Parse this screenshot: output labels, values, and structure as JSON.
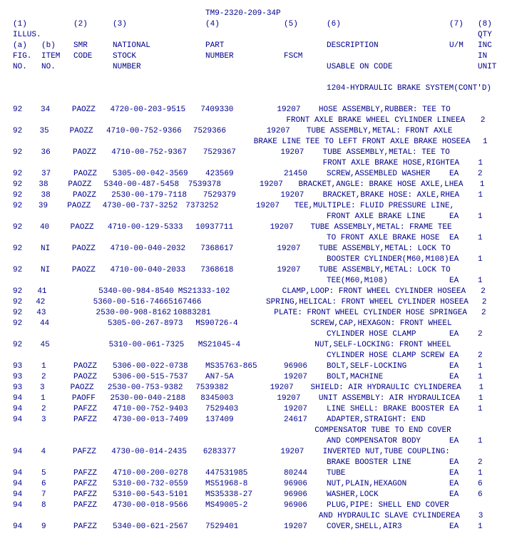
{
  "doc_title": "TM9-2320-209-34P",
  "header": {
    "r1": {
      "c1": "(1)",
      "c2": "",
      "c3": "(2)",
      "c4": "(3)",
      "c5": "(4)",
      "c6": "(5)",
      "c7": "(6)",
      "c8": "(7)",
      "c9": "(8)"
    },
    "r2": {
      "c1": "ILLUS.",
      "c2": "",
      "c3": "",
      "c4": "",
      "c5": "",
      "c6": "",
      "c7": "",
      "c8": "",
      "c9": "QTY"
    },
    "r3": {
      "c1": "(a)",
      "c2": "(b)",
      "c3": "SMR",
      "c4": "NATIONAL",
      "c5": "PART",
      "c6": "",
      "c7": "DESCRIPTION",
      "c8": "U/M",
      "c9": "INC"
    },
    "r4": {
      "c1": "FIG.",
      "c2": "ITEM",
      "c3": "CODE",
      "c4": "STOCK",
      "c5": "NUMBER",
      "c6": "FSCM",
      "c7": "",
      "c8": "",
      "c9": "IN"
    },
    "r5": {
      "c1": "NO.",
      "c2": "NO.",
      "c3": "",
      "c4": "NUMBER",
      "c5": "",
      "c6": "",
      "c7": "USABLE ON CODE",
      "c8": "",
      "c9": "UNIT"
    }
  },
  "section_title": "1204-HYDRAULIC BRAKE SYSTEM(CONT'D)",
  "rows": [
    {
      "c1": "92",
      "c2": "34",
      "c3": "PAOZZ",
      "c4": "4720-00-203-9515",
      "c5": "7409330",
      "c6": "19207",
      "c7": "HOSE ASSEMBLY,RUBBER: TEE TO",
      "c8": "",
      "c9": ""
    },
    {
      "c1": "",
      "c2": "",
      "c3": "",
      "c4": "",
      "c5": "",
      "c6": "",
      "c7": "FRONT AXLE BRAKE WHEEL CYLINDER LINE",
      "c8": "EA",
      "c9": "2"
    },
    {
      "c1": "92",
      "c2": "35",
      "c3": "PAOZZ",
      "c4": "4710-00-752-9366",
      "c5": "7529366",
      "c6": "19207",
      "c7": "TUBE ASSEMBLY,METAL: FRONT AXLE",
      "c8": "",
      "c9": ""
    },
    {
      "c1": "",
      "c2": "",
      "c3": "",
      "c4": "",
      "c5": "",
      "c6": "",
      "c7": "BRAKE LINE TEE TO LEFT FRONT AXLE BRAKE HOSE",
      "c8": "EA",
      "c9": "1"
    },
    {
      "c1": "92",
      "c2": "36",
      "c3": "PAOZZ",
      "c4": "4710-00-752-9367",
      "c5": "7529367",
      "c6": "19207",
      "c7": "TUBE ASSEMBLY,METAL: TEE TO",
      "c8": "",
      "c9": ""
    },
    {
      "c1": "",
      "c2": "",
      "c3": "",
      "c4": "",
      "c5": "",
      "c6": "",
      "c7": "FRONT AXLE BRAKE HOSE,RIGHT",
      "c8": "EA",
      "c9": "1"
    },
    {
      "c1": "92",
      "c2": "37",
      "c3": "PAOZZ",
      "c4": "5305-00-042-3569",
      "c5": "423569",
      "c6": "21450",
      "c7": "SCREW,ASSEMBLED WASHER",
      "c8": "EA",
      "c9": "2"
    },
    {
      "c1": "92",
      "c2": "38",
      "c3": "PAOZZ",
      "c4": "5340-00-487-5458",
      "c5": "7539378",
      "c6": "19207",
      "c7": "BRACKET,ANGLE: BRAKE HOSE AXLE,LH",
      "c8": "EA",
      "c9": "1"
    },
    {
      "c1": "92",
      "c2": "38",
      "c3": "PAOZZ",
      "c4": "2530-00-179-7118",
      "c5": "7529379",
      "c6": "19207",
      "c7": "BRACKET,BRAKE HOSE: AXLE,RH",
      "c8": "EA",
      "c9": "1"
    },
    {
      "c1": "92",
      "c2": "39",
      "c3": "PAOZZ",
      "c4": "4730-00-737-3252",
      "c5": "7373252",
      "c6": "19207",
      "c7": "TEE,MULTIPLE: FLUID PRESSURE LINE,",
      "c8": "",
      "c9": ""
    },
    {
      "c1": "",
      "c2": "",
      "c3": "",
      "c4": "",
      "c5": "",
      "c6": "",
      "c7": "FRONT AXLE BRAKE LINE",
      "c8": "EA",
      "c9": "1"
    },
    {
      "c1": "92",
      "c2": "40",
      "c3": "PAOZZ",
      "c4": "4710-00-129-5333",
      "c5": "10937711",
      "c6": "19207",
      "c7": "TUBE ASSEMBLY,METAL: FRAME TEE",
      "c8": "",
      "c9": ""
    },
    {
      "c1": "",
      "c2": "",
      "c3": "",
      "c4": "",
      "c5": "",
      "c6": "",
      "c7": "TO FRONT AXLE BRAKE HOSE",
      "c8": "EA",
      "c9": "1"
    },
    {
      "c1": "92",
      "c2": "NI",
      "c3": "PAOZZ",
      "c4": "4710-00-040-2032",
      "c5": "7368617",
      "c6": "19207",
      "c7": "TUBE ASSEMBLY,METAL: LOCK TO",
      "c8": "",
      "c9": ""
    },
    {
      "c1": "",
      "c2": "",
      "c3": "",
      "c4": "",
      "c5": "",
      "c6": "",
      "c7": "BOOSTER CYLINDER(M60,M108)",
      "c8": "EA",
      "c9": "1"
    },
    {
      "c1": "92",
      "c2": "NI",
      "c3": "PAOZZ",
      "c4": "4710-00-040-2033",
      "c5": "7368618",
      "c6": "19207",
      "c7": "TUBE ASSEMBLY,METAL: LOCK TO",
      "c8": "",
      "c9": ""
    },
    {
      "c1": "",
      "c2": "",
      "c3": "",
      "c4": "",
      "c5": "",
      "c6": "",
      "c7": "TEE(M60,M108)",
      "c8": "EA",
      "c9": "1"
    },
    {
      "c1": "92",
      "c2": "41",
      "c3": "",
      "c4": "5340-00-984-8540",
      "c5": "MS21333-102",
      "c6": "",
      "c7": "CLAMP,LOOP: FRONT WHEEL CYLINDER HOSE",
      "c8": "EA",
      "c9": "2"
    },
    {
      "c1": "92",
      "c2": "42",
      "c3": "",
      "c4": "5360-00-516-7466",
      "c5": "5167466",
      "c6": "",
      "c7": "SPRING,HELICAL: FRONT WHEEL CYLINDER HOSE",
      "c8": "EA",
      "c9": "2"
    },
    {
      "c1": "92",
      "c2": "43",
      "c3": "",
      "c4": "2530-00-908-8162",
      "c5": "10883281",
      "c6": "",
      "c7": "PLATE: FRONT WHEEL CYLINDER HOSE SPRING",
      "c8": "EA",
      "c9": "2"
    },
    {
      "c1": "92",
      "c2": "44",
      "c3": "",
      "c4": "5305-00-267-8973",
      "c5": "MS90726-4",
      "c6": "",
      "c7": "SCREW,CAP,HEXAGON: FRONT WHEEL",
      "c8": "",
      "c9": ""
    },
    {
      "c1": "",
      "c2": "",
      "c3": "",
      "c4": "",
      "c5": "",
      "c6": "",
      "c7": "CYLINDER HOSE CLAMP",
      "c8": "EA",
      "c9": "2"
    },
    {
      "c1": "92",
      "c2": "45",
      "c3": "",
      "c4": "5310-00-061-7325",
      "c5": "MS21045-4",
      "c6": "",
      "c7": "NUT,SELF-LOCKING: FRONT WHEEL",
      "c8": "",
      "c9": ""
    },
    {
      "c1": "",
      "c2": "",
      "c3": "",
      "c4": "",
      "c5": "",
      "c6": "",
      "c7": "CYLINDER HOSE CLAMP SCREW",
      "c8": "EA",
      "c9": "2"
    },
    {
      "c1": "93",
      "c2": "1",
      "c3": "PAOZZ",
      "c4": "5306-00-022-0738",
      "c5": "MS35763-865",
      "c6": "96906",
      "c7": "BOLT,SELF-LOCKING",
      "c8": "EA",
      "c9": "1"
    },
    {
      "c1": "93",
      "c2": "2",
      "c3": "PAOZZ",
      "c4": "5306-00-515-7537",
      "c5": "AN7-5A",
      "c6": "19207",
      "c7": "BOLT,MACHINE",
      "c8": "EA",
      "c9": "1"
    },
    {
      "c1": "93",
      "c2": "3",
      "c3": "PAOZZ",
      "c4": "2530-00-753-9382",
      "c5": "7539382",
      "c6": "19207",
      "c7": "SHIELD: AIR HYDRAULIC CYLINDER",
      "c8": "EA",
      "c9": "1"
    },
    {
      "c1": "94",
      "c2": "1",
      "c3": "PAOFF",
      "c4": "2530-00-040-2188",
      "c5": "8345003",
      "c6": "19207",
      "c7": "UNIT ASSEMBLY: AIR HYDRAULIC",
      "c8": "EA",
      "c9": "1"
    },
    {
      "c1": "94",
      "c2": "2",
      "c3": "PAFZZ",
      "c4": "4710-00-752-9403",
      "c5": "7529403",
      "c6": "19207",
      "c7": "LINE SHELL: BRAKE BOOSTER",
      "c8": "EA",
      "c9": "1"
    },
    {
      "c1": "94",
      "c2": "3",
      "c3": "PAFZZ",
      "c4": "4730-00-013-7409",
      "c5": "137409",
      "c6": "24617",
      "c7": "ADAPTER,STRAIGHT: END",
      "c8": "",
      "c9": ""
    },
    {
      "c1": "",
      "c2": "",
      "c3": "",
      "c4": "",
      "c5": "",
      "c6": "",
      "c7": "COMPENSATOR TUBE TO END COVER",
      "c8": "",
      "c9": ""
    },
    {
      "c1": "",
      "c2": "",
      "c3": "",
      "c4": "",
      "c5": "",
      "c6": "",
      "c7": "AND COMPENSATOR BODY",
      "c8": "EA",
      "c9": "1"
    },
    {
      "c1": "94",
      "c2": "4",
      "c3": "PAFZZ",
      "c4": "4730-00-014-2435",
      "c5": "6283377",
      "c6": "19207",
      "c7": "INVERTED NUT,TUBE COUPLING:",
      "c8": "",
      "c9": ""
    },
    {
      "c1": "",
      "c2": "",
      "c3": "",
      "c4": "",
      "c5": "",
      "c6": "",
      "c7": "BRAKE BOOSTER LINE",
      "c8": "EA",
      "c9": "2"
    },
    {
      "c1": "94",
      "c2": "5",
      "c3": "PAFZZ",
      "c4": "4710-00-200-0278",
      "c5": "447531985",
      "c6": "80244",
      "c7": "TUBE",
      "c8": "EA",
      "c9": "1"
    },
    {
      "c1": "94",
      "c2": "6",
      "c3": "PAFZZ",
      "c4": "5310-00-732-0559",
      "c5": "MS51968-8",
      "c6": "96906",
      "c7": "NUT,PLAIN,HEXAGON",
      "c8": "EA",
      "c9": "6"
    },
    {
      "c1": "94",
      "c2": "7",
      "c3": "PAFZZ",
      "c4": "5310-00-543-5101",
      "c5": "MS35338-27",
      "c6": "96906",
      "c7": "WASHER,LOCK",
      "c8": "EA",
      "c9": "6"
    },
    {
      "c1": "94",
      "c2": "8",
      "c3": "PAFZZ",
      "c4": "4730-00-018-9566",
      "c5": "MS49005-2",
      "c6": "96906",
      "c7": "PLUG,PIPE: SHELL END COVER",
      "c8": "",
      "c9": ""
    },
    {
      "c1": "",
      "c2": "",
      "c3": "",
      "c4": "",
      "c5": "",
      "c6": "",
      "c7": "AND HYDRAULIC SLAVE CYLINDER",
      "c8": "EA",
      "c9": "3"
    },
    {
      "c1": "94",
      "c2": "9",
      "c3": "PAFZZ",
      "c4": "5340-00-621-2567",
      "c5": "7529401",
      "c6": "19207",
      "c7": "COVER,SHELL,AIR3",
      "c8": "EA",
      "c9": "1"
    }
  ]
}
